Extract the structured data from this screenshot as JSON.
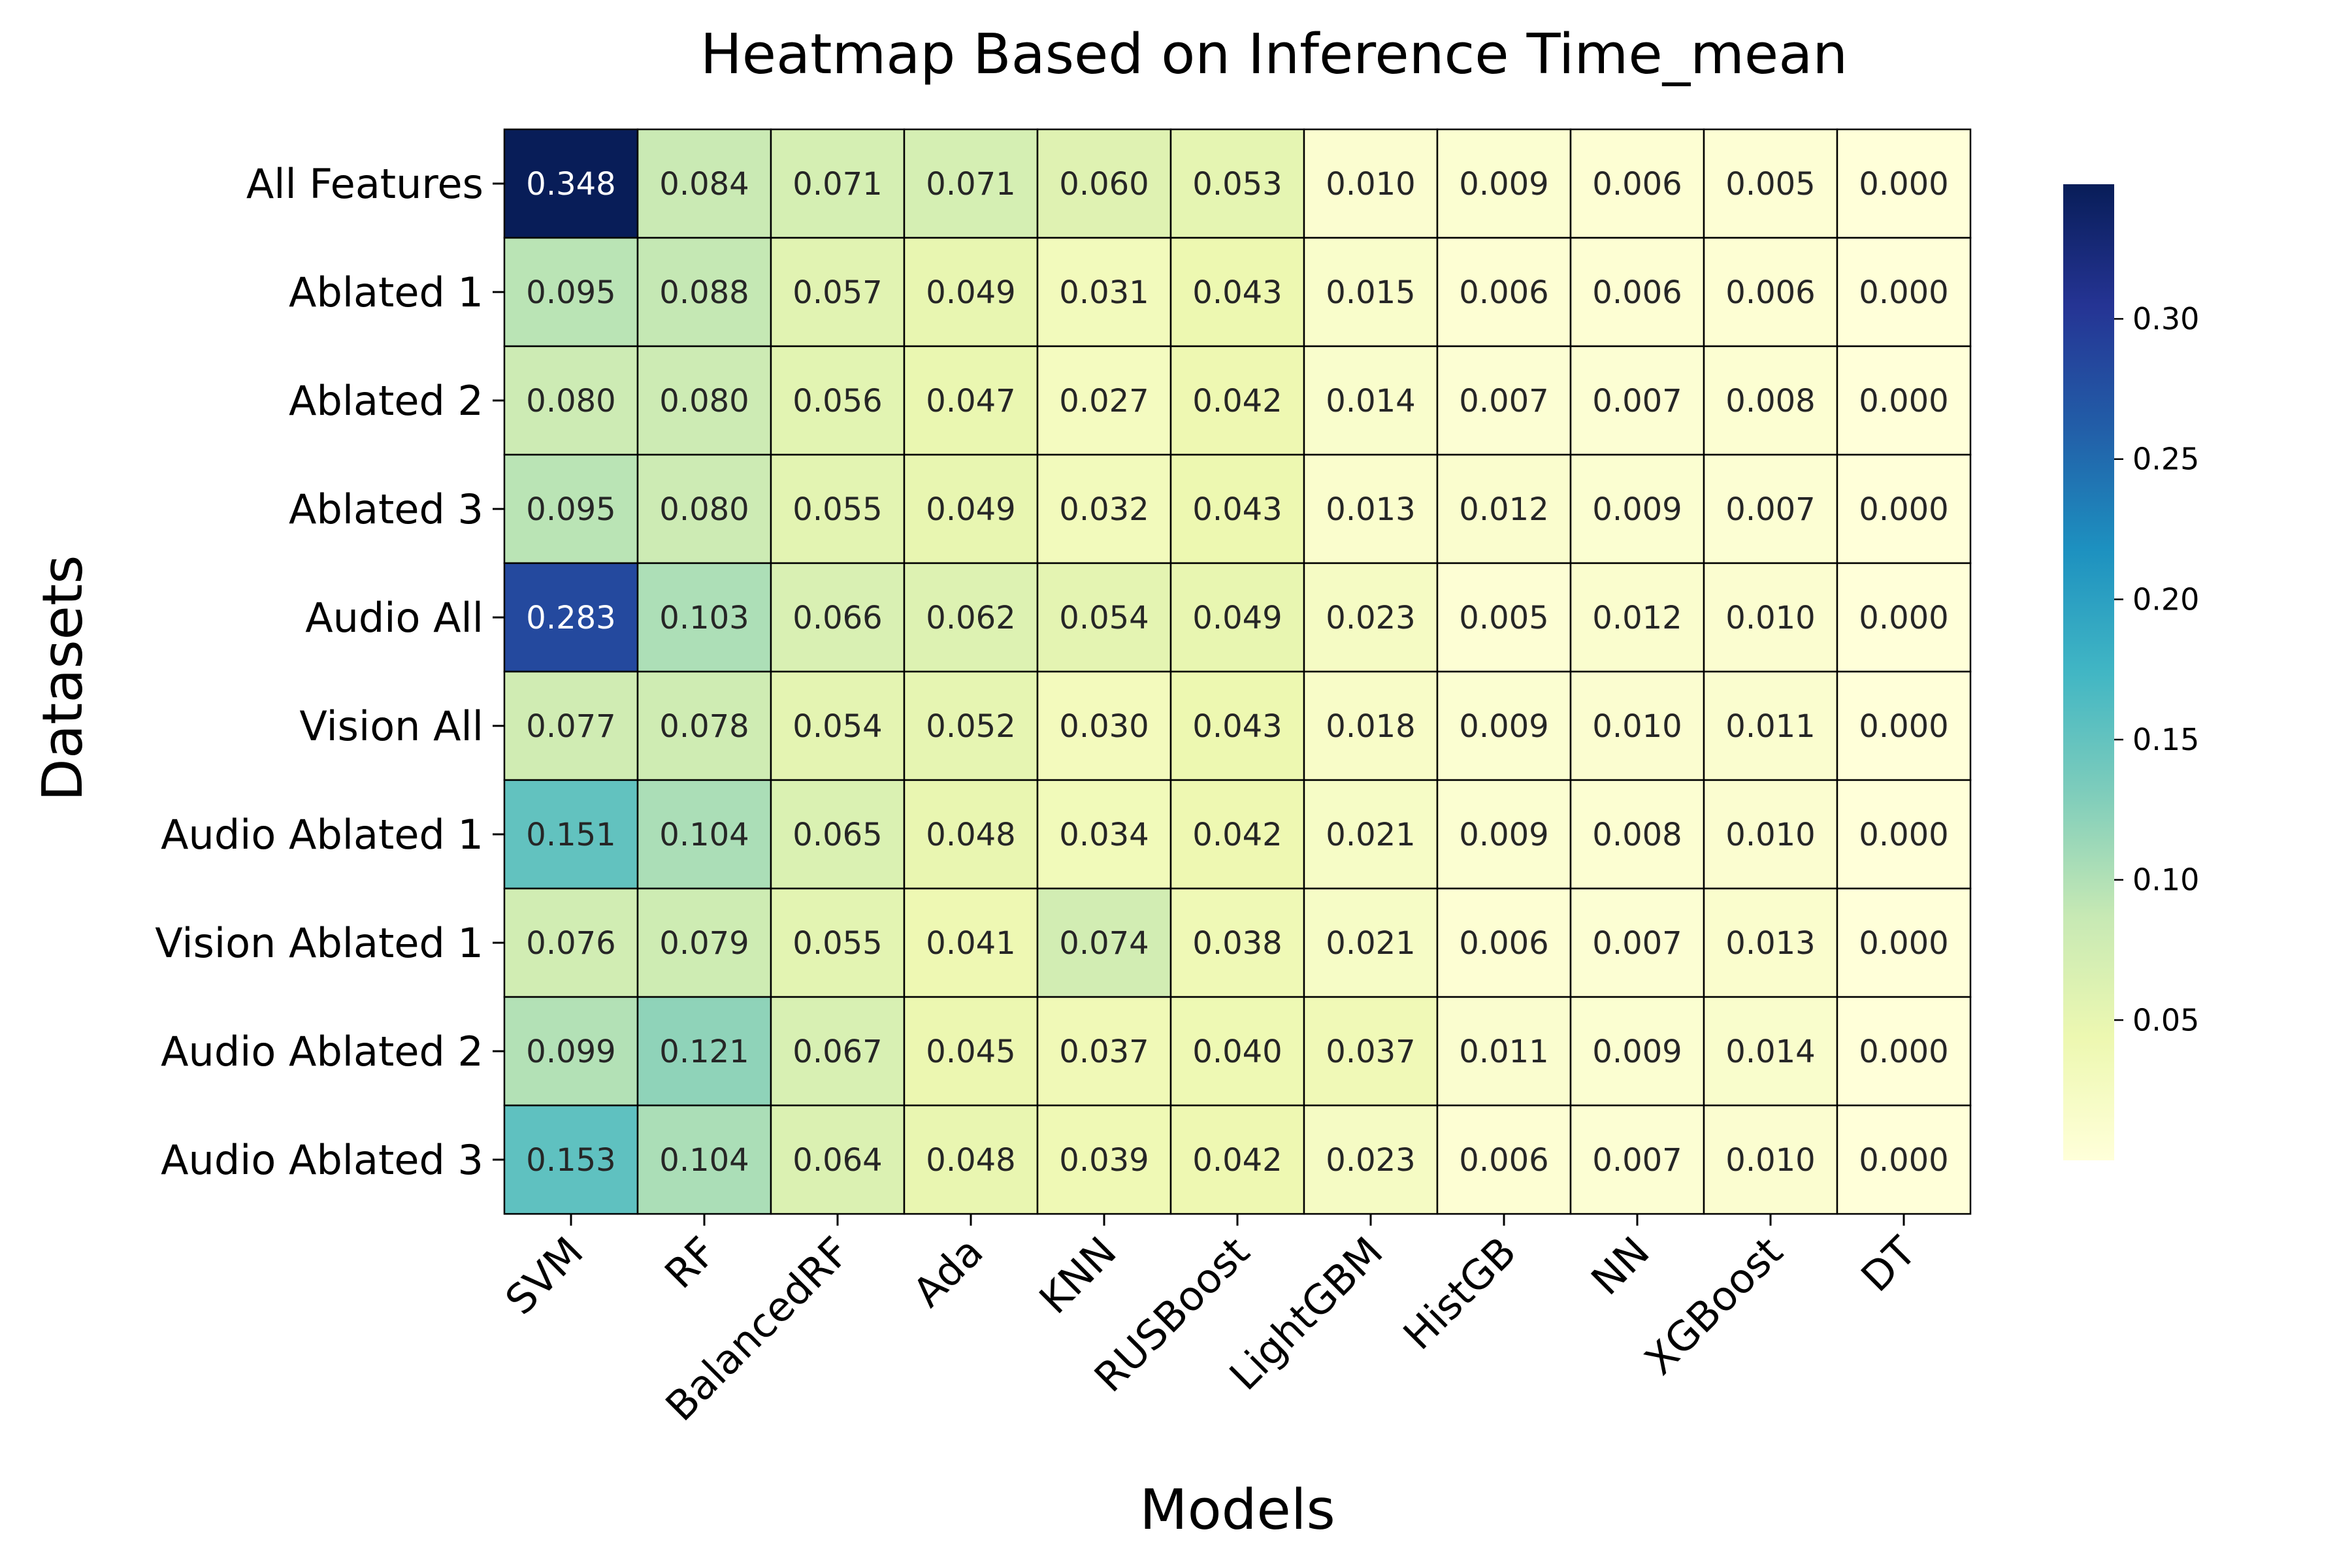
{
  "chart_data": {
    "type": "heatmap",
    "title": "Heatmap Based on Inference Time_mean",
    "xlabel": "Models",
    "ylabel": "Datasets",
    "x_categories": [
      "SVM",
      "RF",
      "BalancedRF",
      "Ada",
      "KNN",
      "RUSBoost",
      "LightGBM",
      "HistGB",
      "NN",
      "XGBoost",
      "DT"
    ],
    "y_categories": [
      "All Features",
      "Ablated 1",
      "Ablated 2",
      "Ablated 3",
      "Audio All",
      "Vision All",
      "Audio Ablated 1",
      "Vision Ablated 1",
      "Audio Ablated 2",
      "Audio Ablated 3"
    ],
    "values": [
      [
        0.348,
        0.084,
        0.071,
        0.071,
        0.06,
        0.053,
        0.01,
        0.009,
        0.006,
        0.005,
        0.0
      ],
      [
        0.095,
        0.088,
        0.057,
        0.049,
        0.031,
        0.043,
        0.015,
        0.006,
        0.006,
        0.006,
        0.0
      ],
      [
        0.08,
        0.08,
        0.056,
        0.047,
        0.027,
        0.042,
        0.014,
        0.007,
        0.007,
        0.008,
        0.0
      ],
      [
        0.095,
        0.08,
        0.055,
        0.049,
        0.032,
        0.043,
        0.013,
        0.012,
        0.009,
        0.007,
        0.0
      ],
      [
        0.283,
        0.103,
        0.066,
        0.062,
        0.054,
        0.049,
        0.023,
        0.005,
        0.012,
        0.01,
        0.0
      ],
      [
        0.077,
        0.078,
        0.054,
        0.052,
        0.03,
        0.043,
        0.018,
        0.009,
        0.01,
        0.011,
        0.0
      ],
      [
        0.151,
        0.104,
        0.065,
        0.048,
        0.034,
        0.042,
        0.021,
        0.009,
        0.008,
        0.01,
        0.0
      ],
      [
        0.076,
        0.079,
        0.055,
        0.041,
        0.074,
        0.038,
        0.021,
        0.006,
        0.007,
        0.013,
        0.0
      ],
      [
        0.099,
        0.121,
        0.067,
        0.045,
        0.037,
        0.04,
        0.037,
        0.011,
        0.009,
        0.014,
        0.0
      ],
      [
        0.153,
        0.104,
        0.064,
        0.048,
        0.039,
        0.042,
        0.023,
        0.006,
        0.007,
        0.01,
        0.0
      ]
    ],
    "value_format": "0.000",
    "colormap": "YlGnBu",
    "color_range": [
      0.0,
      0.348
    ],
    "colorbar_ticks": [
      "0.05",
      "0.10",
      "0.15",
      "0.20",
      "0.25",
      "0.30"
    ],
    "colorbar_placement": "right"
  }
}
